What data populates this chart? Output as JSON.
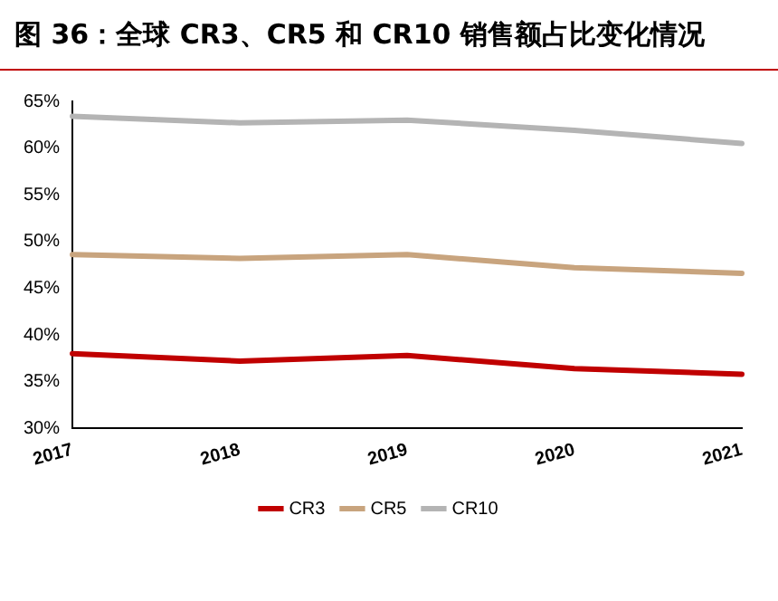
{
  "chart_data": {
    "type": "line",
    "title": "图 36：全球 CR3、CR5 和 CR10 销售额占比变化情况",
    "categories": [
      "2017",
      "2018",
      "2019",
      "2020",
      "2021"
    ],
    "series": [
      {
        "name": "CR3",
        "color": "#c00000",
        "values": [
          38.0,
          37.2,
          37.8,
          36.4,
          35.8
        ]
      },
      {
        "name": "CR5",
        "color": "#c8a47e",
        "values": [
          48.6,
          48.2,
          48.6,
          47.2,
          46.6
        ]
      },
      {
        "name": "CR10",
        "color": "#b4b4b4",
        "values": [
          63.4,
          62.7,
          63.0,
          61.9,
          60.5
        ]
      }
    ],
    "ylim": [
      30,
      65
    ],
    "yticks": [
      {
        "value": 30,
        "label": "30%"
      },
      {
        "value": 35,
        "label": "35%"
      },
      {
        "value": 40,
        "label": "40%"
      },
      {
        "value": 45,
        "label": "45%"
      },
      {
        "value": 50,
        "label": "50%"
      },
      {
        "value": 55,
        "label": "55%"
      },
      {
        "value": 60,
        "label": "60%"
      },
      {
        "value": 65,
        "label": "65%"
      }
    ],
    "grid": false,
    "legend": "bottom",
    "marker": "none",
    "line_style": "solid"
  }
}
